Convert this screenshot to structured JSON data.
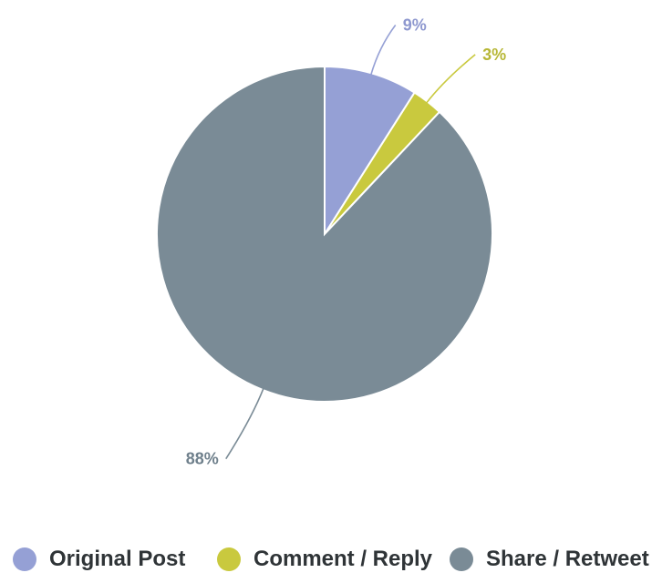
{
  "chart_data": {
    "type": "pie",
    "slices": [
      {
        "label": "Original Post",
        "value": 9,
        "display": "9%",
        "color": "#95a0d5"
      },
      {
        "label": "Comment / Reply",
        "value": 3,
        "display": "3%",
        "color": "#c9c93e"
      },
      {
        "label": "Share / Retweet",
        "value": 88,
        "display": "88%",
        "color": "#7a8b96"
      }
    ],
    "start_angle_deg": 0,
    "direction": "clockwise",
    "legend_position": "bottom",
    "label_style": "outside with leader lines"
  },
  "legend": {
    "items": [
      {
        "label": "Original Post",
        "color": "#95a0d5"
      },
      {
        "label": "Comment / Reply",
        "color": "#c9c93e"
      },
      {
        "label": "Share / Retweet",
        "color": "#7a8b96"
      }
    ]
  }
}
